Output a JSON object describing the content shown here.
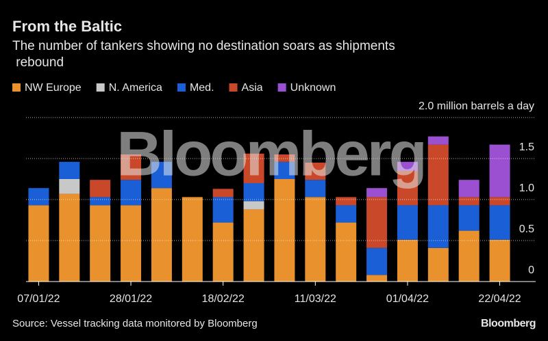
{
  "chart_data": {
    "type": "stacked-bar",
    "title": "From the Baltic",
    "subtitle": "The number of tankers showing no destination soars as shipments rebound",
    "categories": [
      "07/01/22",
      null,
      null,
      "28/01/22",
      null,
      null,
      "18/02/22",
      null,
      null,
      "11/03/22",
      null,
      null,
      "01/04/22",
      null,
      null,
      "22/04/22"
    ],
    "series": [
      {
        "name": "NW Europe",
        "color": "#e8912d",
        "values": [
          0.93,
          1.07,
          0.93,
          0.93,
          1.14,
          1.03,
          0.72,
          0.88,
          1.25,
          1.03,
          0.72,
          0.08,
          0.51,
          0.41,
          0.62,
          0.51
        ]
      },
      {
        "name": "N. America",
        "color": "#c8c8c8",
        "values": [
          0,
          0.18,
          0,
          0,
          0,
          0,
          0,
          0.1,
          0,
          0,
          0,
          0,
          0,
          0,
          0,
          0
        ]
      },
      {
        "name": "Med.",
        "color": "#1a5fd6",
        "values": [
          0.21,
          0.21,
          0.1,
          0.31,
          0.32,
          0,
          0.31,
          0.22,
          0.21,
          0.21,
          0.21,
          0.33,
          0.42,
          0.52,
          0.31,
          0.42
        ]
      },
      {
        "name": "Asia",
        "color": "#c9482a",
        "values": [
          0,
          0,
          0.21,
          0.31,
          0,
          0,
          0.1,
          0.36,
          0.09,
          0.21,
          0.1,
          0.62,
          0.42,
          0.74,
          0.1,
          0.1
        ]
      },
      {
        "name": "Unknown",
        "color": "#9b4fd1",
        "values": [
          0,
          0,
          0,
          0,
          0,
          0,
          0,
          0,
          0,
          0,
          0,
          0.11,
          0.11,
          0.1,
          0.21,
          0.64
        ]
      }
    ],
    "ylim": [
      0,
      2
    ],
    "yticks": [
      0,
      0.5,
      {
        "value": 1,
        "label": "1.0"
      },
      1.5,
      {
        "value": 2,
        "label": "2.0 million barrels a day"
      }
    ],
    "grid": true,
    "watermark": "Bloomberg",
    "source": "Source: Vessel tracking data monitored by Bloomberg",
    "brand": "Bloomberg"
  }
}
